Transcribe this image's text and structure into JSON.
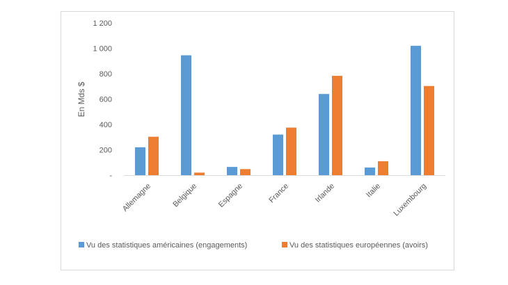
{
  "chart_data": {
    "type": "bar",
    "title": "",
    "xlabel": "",
    "ylabel": "En Mds $",
    "ylim": [
      0,
      1200
    ],
    "yticks": [
      0,
      200,
      400,
      600,
      800,
      1000,
      1200
    ],
    "ytick_labels": [
      "-",
      "200",
      "400",
      "600",
      "800",
      "1 000",
      "1 200"
    ],
    "grid": false,
    "legend_position": "bottom",
    "categories": [
      "Allemagne",
      "Belgique",
      "Espagne",
      "France",
      "Irlande",
      "Italie",
      "Luxembourg"
    ],
    "series": [
      {
        "name": "Vu des statistiques américaines (engagements)",
        "color": "#5B9BD5",
        "values": [
          220,
          945,
          65,
          320,
          640,
          60,
          1020
        ]
      },
      {
        "name": "Vu des statistiques européennes (avoirs)",
        "color": "#ED7D31",
        "values": [
          303,
          20,
          48,
          375,
          783,
          110,
          703
        ]
      }
    ]
  }
}
